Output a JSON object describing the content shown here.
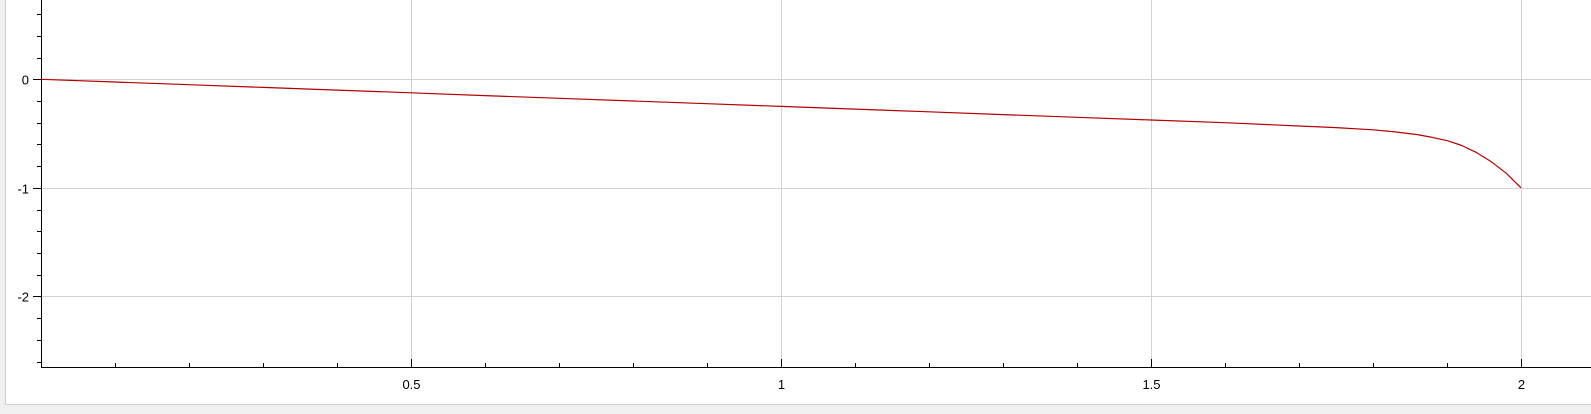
{
  "chart_data": {
    "type": "line",
    "title": "",
    "xlabel": "",
    "ylabel": "",
    "xlim": [
      0,
      2.05
    ],
    "ylim": [
      -2.65,
      0.73
    ],
    "grid": true,
    "x_major_ticks": [
      {
        "value": 0.5,
        "label": "0.5"
      },
      {
        "value": 1,
        "label": "1"
      },
      {
        "value": 1.5,
        "label": "1.5"
      },
      {
        "value": 2,
        "label": "2"
      }
    ],
    "x_minor_step": 0.1,
    "y_major_ticks": [
      {
        "value": 0,
        "label": "0"
      },
      {
        "value": -1,
        "label": "-1"
      },
      {
        "value": -2,
        "label": "-2"
      }
    ],
    "y_minor_step": 0.2,
    "series": [
      {
        "color": "#b40000",
        "x": [
          0,
          0.1,
          0.2,
          0.3,
          0.4,
          0.5,
          0.6,
          0.7,
          0.8,
          0.9,
          1.0,
          1.1,
          1.2,
          1.3,
          1.4,
          1.5,
          1.6,
          1.7,
          1.75,
          1.8,
          1.83,
          1.86,
          1.88,
          1.9,
          1.92,
          1.94,
          1.96,
          1.98,
          2.0
        ],
        "y": [
          0,
          -0.025,
          -0.05,
          -0.075,
          -0.1,
          -0.125,
          -0.15,
          -0.175,
          -0.2,
          -0.225,
          -0.25,
          -0.275,
          -0.3,
          -0.325,
          -0.35,
          -0.375,
          -0.4,
          -0.43,
          -0.445,
          -0.465,
          -0.485,
          -0.51,
          -0.535,
          -0.565,
          -0.61,
          -0.675,
          -0.76,
          -0.865,
          -1.0
        ]
      }
    ]
  }
}
